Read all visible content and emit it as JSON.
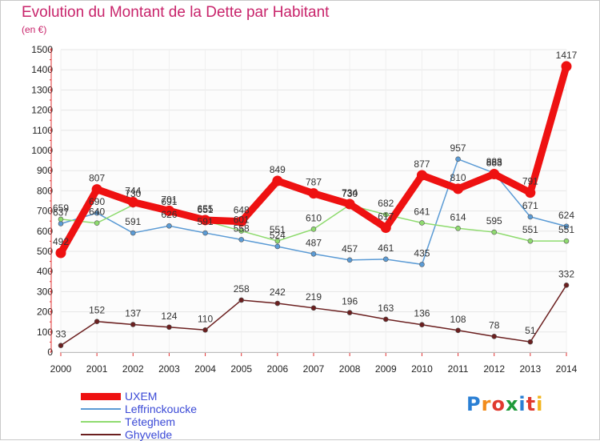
{
  "header": {
    "title": "Evolution du Montant de la Dette par Habitant",
    "unit": "(en €)"
  },
  "chart_data": {
    "type": "line",
    "title": "Evolution du Montant de la Dette par Habitant",
    "ylabel": "(en €)",
    "xlabel": "",
    "x": [
      "2000",
      "2001",
      "2002",
      "2003",
      "2004",
      "2005",
      "2006",
      "2007",
      "2008",
      "2009",
      "2010",
      "2011",
      "2012",
      "2013",
      "2014"
    ],
    "ylim": [
      0,
      1500
    ],
    "yticks": [
      0,
      100,
      200,
      300,
      400,
      500,
      600,
      700,
      800,
      900,
      1000,
      1100,
      1200,
      1300,
      1400,
      1500
    ],
    "grid": true,
    "legend_position": "bottom-left",
    "series": [
      {
        "name": "UXEM",
        "color": "#ee1111",
        "values": [
          492,
          807,
          744,
          701,
          655,
          648,
          849,
          787,
          734,
          617,
          877,
          810,
          883,
          791,
          1417
        ]
      },
      {
        "name": "Leffrinckoucke",
        "color": "#5b9bd5",
        "values": [
          637,
          690,
          591,
          626,
          591,
          558,
          524,
          487,
          457,
          461,
          435,
          957,
          888,
          671,
          624
        ]
      },
      {
        "name": "Téteghem",
        "color": "#8fdb6f",
        "values": [
          659,
          640,
          730,
          691,
          651,
          601,
          551,
          610,
          730,
          682,
          641,
          614,
          595,
          551,
          551
        ]
      },
      {
        "name": "Ghyvelde",
        "color": "#6b1f1f",
        "values": [
          33,
          152,
          137,
          124,
          110,
          258,
          242,
          219,
          196,
          163,
          136,
          108,
          78,
          51,
          332
        ]
      }
    ]
  },
  "legend": [
    {
      "name": "UXEM",
      "color": "#ee1111"
    },
    {
      "name": "Leffrinckoucke",
      "color": "#5b9bd5"
    },
    {
      "name": "Téteghem",
      "color": "#8fdb6f"
    },
    {
      "name": "Ghyvelde",
      "color": "#6b1f1f"
    }
  ],
  "logo": {
    "text": "Proxiti",
    "letters": [
      {
        "ch": "P",
        "color": "#2a7fd4"
      },
      {
        "ch": "r",
        "color": "#f28c1c"
      },
      {
        "ch": "o",
        "color": "#e03a2f"
      },
      {
        "ch": "x",
        "color": "#1f9a3a"
      },
      {
        "ch": "i",
        "color": "#2a7fd4"
      },
      {
        "ch": "t",
        "color": "#e03a2f"
      },
      {
        "ch": "i",
        "color": "#f2b41c"
      }
    ]
  }
}
